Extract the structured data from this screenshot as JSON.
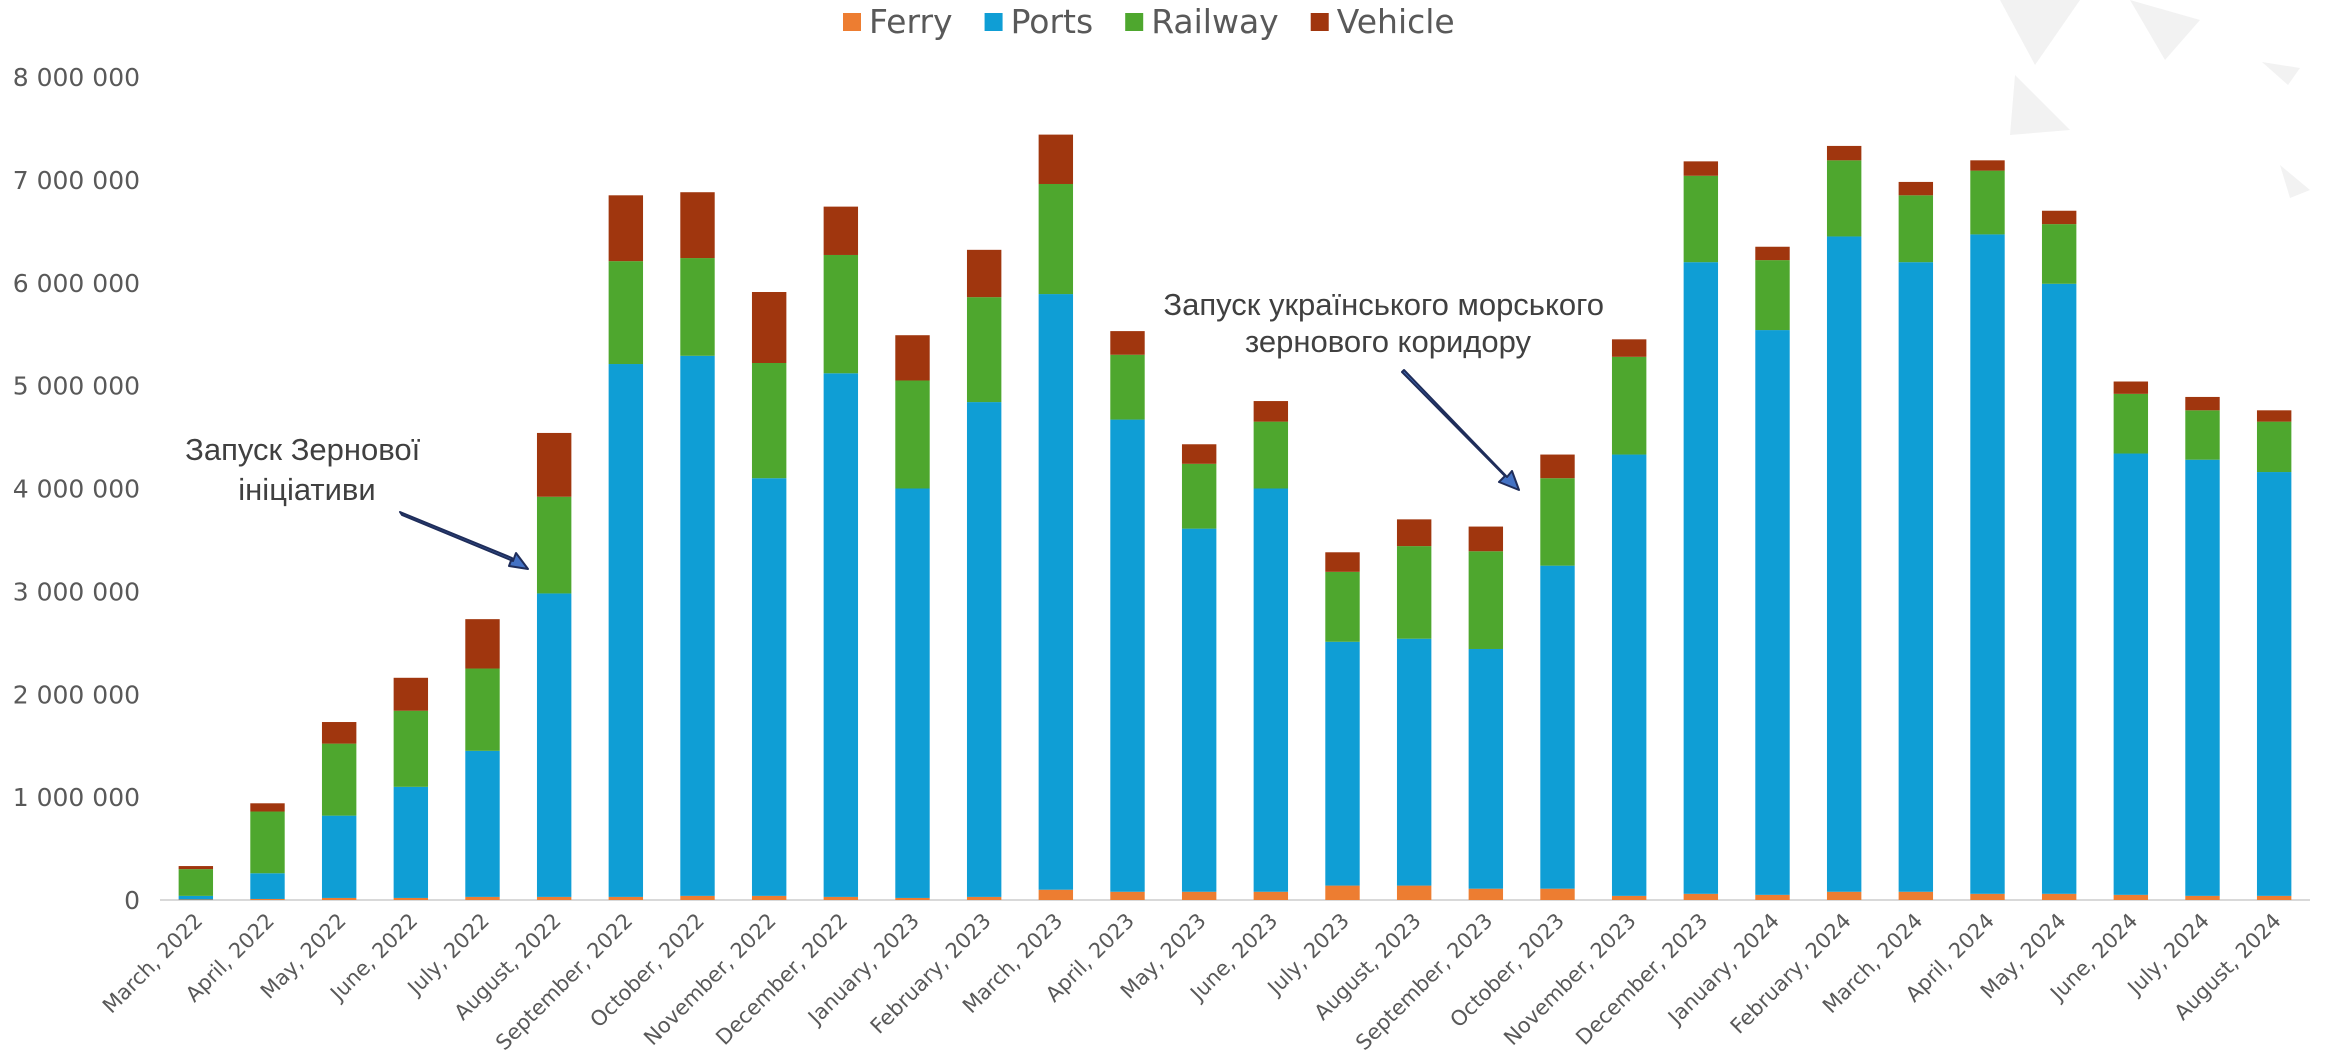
{
  "chart_data": {
    "type": "bar",
    "stacked": true,
    "title": "",
    "xlabel": "",
    "ylabel": "",
    "ylim": [
      0,
      8000000
    ],
    "y_ticks": [
      0,
      1000000,
      2000000,
      3000000,
      4000000,
      5000000,
      6000000,
      7000000,
      8000000
    ],
    "y_tick_labels": [
      "0",
      "1 000 000",
      "2 000 000",
      "3 000 000",
      "4 000 000",
      "5 000 000",
      "6 000 000",
      "7 000 000",
      "8 000 000"
    ],
    "grid": false,
    "legend_position": "top-center",
    "categories": [
      "March, 2022",
      "April, 2022",
      "May, 2022",
      "June, 2022",
      "July, 2022",
      "August, 2022",
      "September, 2022",
      "October, 2022",
      "November, 2022",
      "December, 2022",
      "January, 2023",
      "February, 2023",
      "March, 2023",
      "April, 2023",
      "May, 2023",
      "June, 2023",
      "July, 2023",
      "August, 2023",
      "September, 2023",
      "October, 2023",
      "November, 2023",
      "December, 2023",
      "January, 2024",
      "February, 2024",
      "March, 2024",
      "April, 2024",
      "May, 2024",
      "June, 2024",
      "July, 2024",
      "August, 2024"
    ],
    "series": [
      {
        "name": "Ferry",
        "color": "#ED7D31",
        "values": [
          5000,
          10000,
          20000,
          20000,
          30000,
          30000,
          30000,
          40000,
          40000,
          30000,
          20000,
          30000,
          100000,
          80000,
          80000,
          80000,
          140000,
          140000,
          110000,
          110000,
          40000,
          60000,
          50000,
          80000,
          80000,
          60000,
          60000,
          50000,
          40000,
          40000
        ]
      },
      {
        "name": "Ports",
        "color": "#0F9ED5",
        "values": [
          35000,
          250000,
          800000,
          1080000,
          1420000,
          2950000,
          5180000,
          5250000,
          4060000,
          5090000,
          3980000,
          4810000,
          5790000,
          4590000,
          3530000,
          3920000,
          2370000,
          2400000,
          2330000,
          3140000,
          4290000,
          6140000,
          5490000,
          6370000,
          6120000,
          6410000,
          5930000,
          4290000,
          4240000,
          4120000
        ]
      },
      {
        "name": "Railway",
        "color": "#4EA72E",
        "values": [
          260000,
          600000,
          700000,
          740000,
          800000,
          940000,
          1000000,
          950000,
          1120000,
          1150000,
          1050000,
          1020000,
          1070000,
          630000,
          630000,
          650000,
          680000,
          900000,
          950000,
          850000,
          950000,
          840000,
          680000,
          740000,
          650000,
          620000,
          580000,
          580000,
          480000,
          490000
        ]
      },
      {
        "name": "Vehicle",
        "color": "#A0360E",
        "values": [
          30000,
          80000,
          210000,
          320000,
          480000,
          620000,
          640000,
          640000,
          690000,
          470000,
          440000,
          460000,
          480000,
          230000,
          190000,
          200000,
          190000,
          260000,
          240000,
          230000,
          170000,
          140000,
          130000,
          140000,
          130000,
          100000,
          130000,
          120000,
          130000,
          110000
        ]
      }
    ],
    "annotations": [
      {
        "lines": [
          "Запуск Зернової",
          "ініціативи"
        ],
        "points_to": "August, 2022"
      },
      {
        "lines": [
          "Запуск українського морського",
          "зернового коридору"
        ],
        "points_to": "October, 2023"
      }
    ]
  }
}
